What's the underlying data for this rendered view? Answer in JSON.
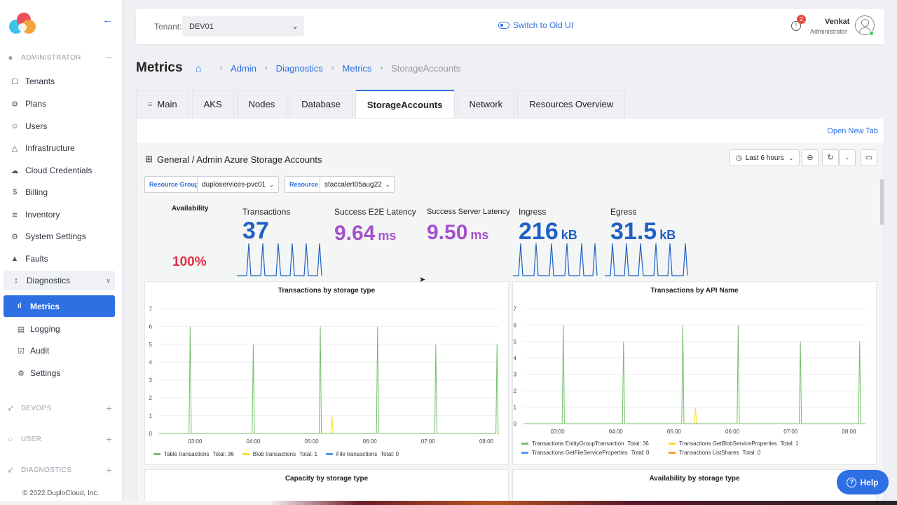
{
  "sidebar": {
    "sections": {
      "administrator": "ADMINISTRATOR",
      "devops": "DEVOPS",
      "user": "USER",
      "diagnostics": "DIAGNOSTICS"
    },
    "items": [
      {
        "label": "Tenants",
        "icon": "tenant-icon"
      },
      {
        "label": "Plans",
        "icon": "plans-icon"
      },
      {
        "label": "Users",
        "icon": "users-icon"
      },
      {
        "label": "Infrastructure",
        "icon": "infrastructure-icon"
      },
      {
        "label": "Cloud Credentials",
        "icon": "cloud-icon"
      },
      {
        "label": "Billing",
        "icon": "dollar-icon"
      },
      {
        "label": "Inventory",
        "icon": "layers-icon"
      },
      {
        "label": "System Settings",
        "icon": "gear-icon"
      },
      {
        "label": "Faults",
        "icon": "warning-icon"
      }
    ],
    "group": {
      "label": "Diagnostics",
      "icon": "thermometer-icon"
    },
    "active": {
      "label": "Metrics",
      "icon": "bar-chart-icon"
    },
    "sub_items": [
      {
        "label": "Logging",
        "icon": "document-icon"
      },
      {
        "label": "Audit",
        "icon": "checkbox-icon"
      },
      {
        "label": "Settings",
        "icon": "gear-icon"
      }
    ],
    "copyright": "© 2022 DuploCloud, Inc."
  },
  "topbar": {
    "tenant_label": "Tenant:",
    "tenant_value": "DEV01",
    "switch_label": "Switch to Old UI",
    "notification_count": "2",
    "user_name": "Venkat",
    "user_role": "Administrator"
  },
  "breadcrumb": {
    "title": "Metrics",
    "items": [
      "Admin",
      "Diagnostics",
      "Metrics",
      "StorageAccounts"
    ]
  },
  "tabs": [
    "Main",
    "AKS",
    "Nodes",
    "Database",
    "StorageAccounts",
    "Network",
    "Resources Overview"
  ],
  "panel": {
    "open_new_tab": "Open New Tab",
    "dashboard_title": "General / Admin Azure Storage Accounts",
    "time_range": "Last 6 hours",
    "var_resource_group_label": "Resource Group",
    "var_resource_group_value": "duploservices-pvc01",
    "var_resource_label": "Resource",
    "var_resource_value": "staccalert05aug22"
  },
  "stats": [
    {
      "title": "Availability",
      "value": "100%",
      "unit": "",
      "color": "#e02f44"
    },
    {
      "title": "Transactions",
      "value": "37",
      "unit": "",
      "color": "#1f60c4"
    },
    {
      "title": "Success E2E Latency",
      "value": "9.64",
      "unit": "ms",
      "color": "#a352cc"
    },
    {
      "title": "Success Server Latency",
      "value": "9.50",
      "unit": "ms",
      "color": "#a352cc"
    },
    {
      "title": "Ingress",
      "value": "216",
      "unit": "kB",
      "color": "#1f60c4"
    },
    {
      "title": "Egress",
      "value": "31.5",
      "unit": "kB",
      "color": "#1f60c4"
    }
  ],
  "chart_data": [
    {
      "type": "line",
      "title": "Transactions by storage type",
      "x": [
        "03:00",
        "04:00",
        "05:00",
        "06:00",
        "07:00",
        "08:00"
      ],
      "ylim": [
        0,
        7
      ],
      "yticks": [
        0,
        1,
        2,
        3,
        4,
        5,
        6,
        7
      ],
      "series": [
        {
          "name": "Table transactions",
          "total": "Total: 36",
          "color": "#73bf69",
          "spikes": [
            {
              "t": "02:55",
              "v": 6
            },
            {
              "t": "04:00",
              "v": 5
            },
            {
              "t": "05:09",
              "v": 6
            },
            {
              "t": "06:08",
              "v": 6
            },
            {
              "t": "07:08",
              "v": 5
            },
            {
              "t": "08:11",
              "v": 5
            }
          ]
        },
        {
          "name": "Blob transactions",
          "total": "Total: 1",
          "color": "#fade2a",
          "spikes": [
            {
              "t": "05:21",
              "v": 1
            }
          ]
        },
        {
          "name": "File transactions",
          "total": "Total: 0",
          "color": "#5794f2",
          "spikes": []
        }
      ]
    },
    {
      "type": "line",
      "title": "Transactions by API Name",
      "x": [
        "03:00",
        "04:00",
        "05:00",
        "06:00",
        "07:00",
        "08:00"
      ],
      "ylim": [
        0,
        7
      ],
      "yticks": [
        0,
        1,
        2,
        3,
        4,
        5,
        6,
        7
      ],
      "series": [
        {
          "name": "Transactions EntityGroupTransaction",
          "total": "Total: 36",
          "color": "#73bf69",
          "spikes": [
            {
              "t": "03:06",
              "v": 6
            },
            {
              "t": "04:08",
              "v": 5
            },
            {
              "t": "05:09",
              "v": 6
            },
            {
              "t": "06:06",
              "v": 6
            },
            {
              "t": "07:10",
              "v": 5
            },
            {
              "t": "08:11",
              "v": 5
            }
          ]
        },
        {
          "name": "Transactions GetBlobServiceProperties",
          "total": "Total: 1",
          "color": "#fade2a",
          "spikes": [
            {
              "t": "05:22",
              "v": 1
            }
          ]
        },
        {
          "name": "Transactions GetFileServiceProperties",
          "total": "Total: 0",
          "color": "#5794f2",
          "spikes": []
        },
        {
          "name": "Transactions ListShares",
          "total": "Total: 0",
          "color": "#ff9830",
          "spikes": []
        }
      ]
    }
  ],
  "bottom_panels": [
    "Capacity by storage type",
    "Availability by storage type"
  ],
  "help_label": "Help"
}
